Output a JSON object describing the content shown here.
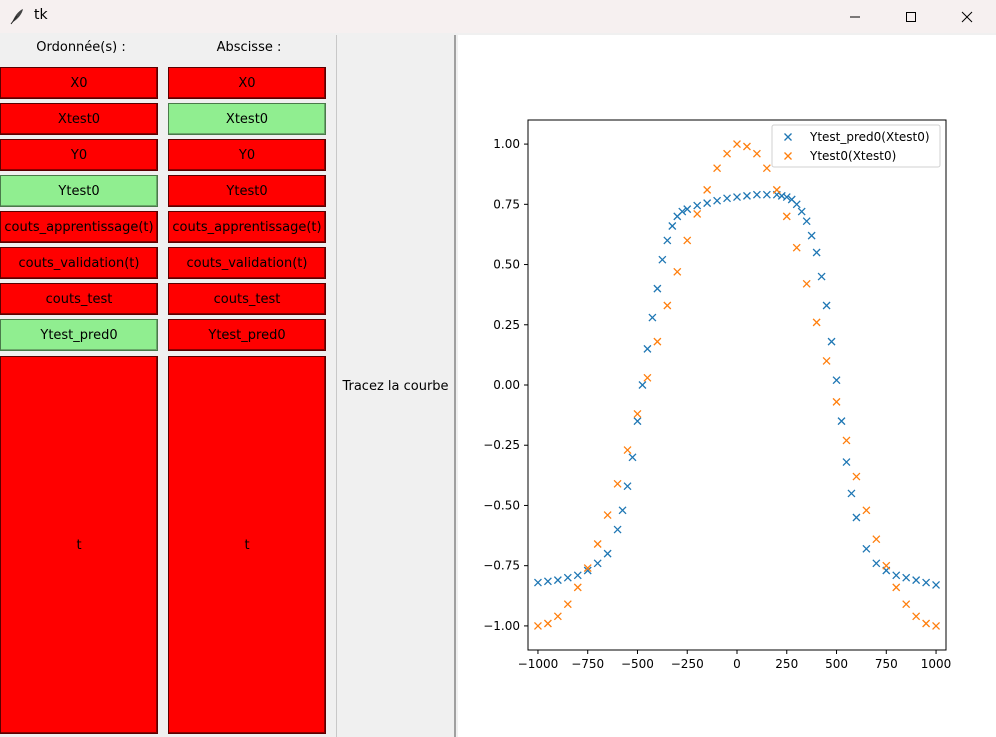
{
  "window": {
    "title": "tk"
  },
  "left_panel": {
    "ordinate_header": "Ordonnée(s) :",
    "abscissa_header": "Abscisse :",
    "ordinate_buttons": [
      {
        "label": "X0",
        "state": "red"
      },
      {
        "label": "Xtest0",
        "state": "red"
      },
      {
        "label": "Y0",
        "state": "red"
      },
      {
        "label": "Ytest0",
        "state": "green"
      },
      {
        "label": "couts_apprentissage(t)",
        "state": "red"
      },
      {
        "label": "couts_validation(t)",
        "state": "red"
      },
      {
        "label": "couts_test",
        "state": "red"
      },
      {
        "label": "Ytest_pred0",
        "state": "green"
      },
      {
        "label": "t",
        "state": "red"
      }
    ],
    "abscissa_buttons": [
      {
        "label": "X0",
        "state": "red"
      },
      {
        "label": "Xtest0",
        "state": "green"
      },
      {
        "label": "Y0",
        "state": "red"
      },
      {
        "label": "Ytest0",
        "state": "red"
      },
      {
        "label": "couts_apprentissage(t)",
        "state": "red"
      },
      {
        "label": "couts_validation(t)",
        "state": "red"
      },
      {
        "label": "couts_test",
        "state": "red"
      },
      {
        "label": "Ytest_pred0",
        "state": "red"
      },
      {
        "label": "t",
        "state": "red"
      }
    ],
    "plot_button_label": "Tracez la courbe"
  },
  "colors": {
    "red": "#ff0000",
    "green": "#90ee90",
    "series_blue": "#1f77b4",
    "series_orange": "#ff7f0e"
  },
  "chart_data": {
    "type": "scatter",
    "title": "",
    "xlabel": "",
    "ylabel": "",
    "xlim": [
      -1050,
      1050
    ],
    "ylim": [
      -1.1,
      1.1
    ],
    "xticks": [
      -1000,
      -750,
      -500,
      -250,
      0,
      250,
      500,
      750,
      1000
    ],
    "xtick_labels": [
      "−1000",
      "−750",
      "−500",
      "−250",
      "0",
      "250",
      "500",
      "750",
      "1000"
    ],
    "yticks": [
      1.0,
      0.75,
      0.5,
      0.25,
      0.0,
      -0.25,
      -0.5,
      -0.75,
      -1.0
    ],
    "ytick_labels": [
      "1.00",
      "0.75",
      "0.50",
      "0.25",
      "0.00",
      "−0.25",
      "−0.50",
      "−0.75",
      "−1.00"
    ],
    "grid": false,
    "legend_position": "top-right",
    "marker": "x",
    "series": [
      {
        "name": "Ytest_pred0(Xtest0)",
        "color": "#1f77b4",
        "x": [
          -1000,
          -950,
          -900,
          -850,
          -800,
          -750,
          -700,
          -650,
          -600,
          -575,
          -550,
          -525,
          -500,
          -475,
          -450,
          -425,
          -400,
          -375,
          -350,
          -325,
          -300,
          -275,
          -250,
          -200,
          -150,
          -100,
          -50,
          0,
          50,
          100,
          150,
          200,
          225,
          250,
          275,
          300,
          325,
          350,
          375,
          400,
          425,
          450,
          475,
          500,
          525,
          550,
          575,
          600,
          650,
          700,
          750,
          800,
          850,
          900,
          950,
          1000
        ],
        "values": [
          -0.82,
          -0.815,
          -0.81,
          -0.8,
          -0.79,
          -0.77,
          -0.74,
          -0.7,
          -0.6,
          -0.52,
          -0.42,
          -0.3,
          -0.15,
          0.0,
          0.15,
          0.28,
          0.4,
          0.52,
          0.6,
          0.66,
          0.7,
          0.72,
          0.73,
          0.745,
          0.755,
          0.765,
          0.775,
          0.78,
          0.785,
          0.79,
          0.79,
          0.79,
          0.785,
          0.78,
          0.77,
          0.75,
          0.72,
          0.68,
          0.62,
          0.55,
          0.45,
          0.33,
          0.18,
          0.02,
          -0.15,
          -0.32,
          -0.45,
          -0.55,
          -0.68,
          -0.74,
          -0.77,
          -0.79,
          -0.8,
          -0.81,
          -0.82,
          -0.83
        ]
      },
      {
        "name": "Ytest0(Xtest0)",
        "color": "#ff7f0e",
        "x": [
          -1000,
          -950,
          -900,
          -850,
          -800,
          -750,
          -700,
          -650,
          -600,
          -550,
          -500,
          -450,
          -400,
          -350,
          -300,
          -250,
          -200,
          -150,
          -100,
          -50,
          0,
          50,
          100,
          150,
          200,
          250,
          300,
          350,
          400,
          450,
          500,
          550,
          600,
          650,
          700,
          750,
          800,
          850,
          900,
          950,
          1000
        ],
        "values": [
          -1.0,
          -0.99,
          -0.96,
          -0.91,
          -0.84,
          -0.76,
          -0.66,
          -0.54,
          -0.41,
          -0.27,
          -0.12,
          0.03,
          0.18,
          0.33,
          0.47,
          0.6,
          0.71,
          0.81,
          0.9,
          0.96,
          1.0,
          0.99,
          0.96,
          0.9,
          0.81,
          0.7,
          0.57,
          0.42,
          0.26,
          0.1,
          -0.07,
          -0.23,
          -0.38,
          -0.52,
          -0.64,
          -0.75,
          -0.84,
          -0.91,
          -0.96,
          -0.99,
          -1.0
        ]
      }
    ]
  }
}
